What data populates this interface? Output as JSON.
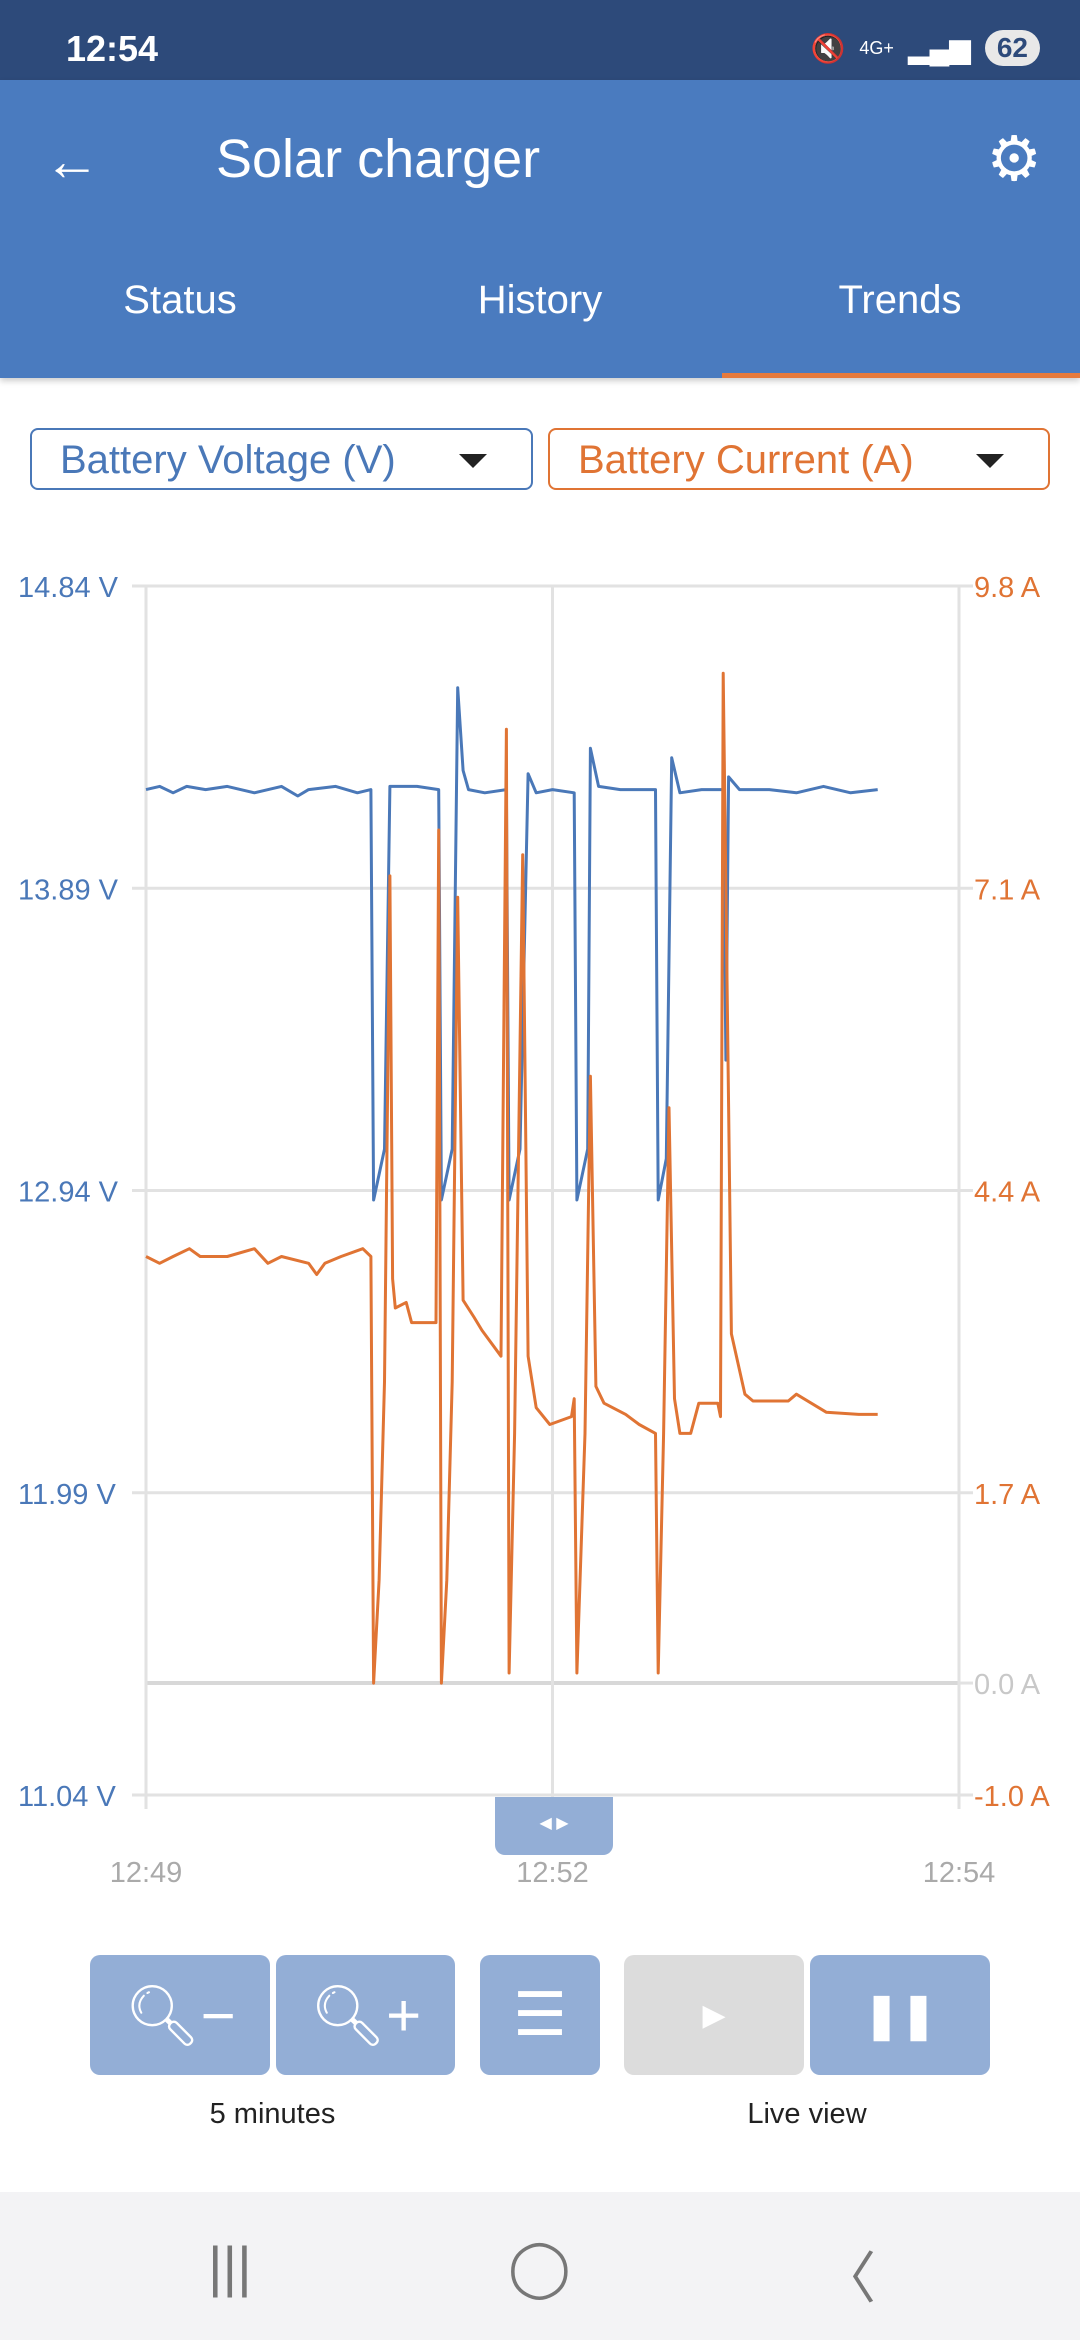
{
  "status_bar": {
    "time": "12:54",
    "battery": "62",
    "network": "4G+"
  },
  "header": {
    "title": "Solar charger"
  },
  "tabs": [
    {
      "label": "Status"
    },
    {
      "label": "History"
    },
    {
      "label": "Trends",
      "active": true
    }
  ],
  "selectors": {
    "left": "Battery Voltage (V)",
    "right": "Battery Current (A)"
  },
  "colors": {
    "voltage": "#4a78b8",
    "current": "#e07434",
    "header": "#4a7bbf",
    "accent": "#e67a3c"
  },
  "controls": {
    "zoom_label": "5 minutes",
    "live_label": "Live view"
  },
  "chart_data": {
    "type": "line",
    "x_ticks": [
      "12:49",
      "12:52",
      "12:54"
    ],
    "xlim": [
      "12:49:00",
      "12:54:00"
    ],
    "y_left": {
      "ticks": [
        "14.84 V",
        "13.89 V",
        "12.94 V",
        "11.99 V",
        "11.04 V"
      ],
      "range": [
        11.04,
        14.84
      ]
    },
    "y_right": {
      "ticks": [
        "9.8 A",
        "7.1 A",
        "4.4 A",
        "1.7 A",
        "0.0 A",
        "-1.0 A"
      ],
      "range": [
        -1.0,
        9.8
      ]
    },
    "grid": true,
    "series": [
      {
        "name": "Battery Voltage (V)",
        "axis": "left",
        "color": "#4a78b8",
        "points": [
          [
            "12:49:00",
            14.2
          ],
          [
            "12:49:05",
            14.21
          ],
          [
            "12:49:10",
            14.19
          ],
          [
            "12:49:15",
            14.21
          ],
          [
            "12:49:22",
            14.2
          ],
          [
            "12:49:30",
            14.21
          ],
          [
            "12:49:40",
            14.19
          ],
          [
            "12:49:50",
            14.21
          ],
          [
            "12:49:56",
            14.18
          ],
          [
            "12:50:00",
            14.2
          ],
          [
            "12:50:10",
            14.21
          ],
          [
            "12:50:18",
            14.19
          ],
          [
            "12:50:23",
            14.2
          ],
          [
            "12:50:24",
            12.91
          ],
          [
            "12:50:28",
            13.07
          ],
          [
            "12:50:30",
            14.21
          ],
          [
            "12:50:40",
            14.21
          ],
          [
            "12:50:48",
            14.2
          ],
          [
            "12:50:49",
            12.91
          ],
          [
            "12:50:53",
            13.07
          ],
          [
            "12:50:55",
            14.52
          ],
          [
            "12:50:57",
            14.26
          ],
          [
            "12:50:59",
            14.2
          ],
          [
            "12:51:05",
            14.19
          ],
          [
            "12:51:13",
            14.2
          ],
          [
            "12:51:14",
            12.91
          ],
          [
            "12:51:18",
            13.07
          ],
          [
            "12:51:21",
            14.25
          ],
          [
            "12:51:24",
            14.19
          ],
          [
            "12:51:30",
            14.2
          ],
          [
            "12:51:38",
            14.19
          ],
          [
            "12:51:39",
            12.91
          ],
          [
            "12:51:43",
            13.07
          ],
          [
            "12:51:44",
            14.33
          ],
          [
            "12:51:47",
            14.21
          ],
          [
            "12:51:55",
            14.2
          ],
          [
            "12:52:08",
            14.2
          ],
          [
            "12:52:09",
            12.91
          ],
          [
            "12:52:12",
            13.04
          ],
          [
            "12:52:14",
            14.3
          ],
          [
            "12:52:17",
            14.19
          ],
          [
            "12:52:25",
            14.2
          ],
          [
            "12:52:33",
            14.2
          ],
          [
            "12:52:34",
            13.35
          ],
          [
            "12:52:35",
            14.24
          ],
          [
            "12:52:39",
            14.2
          ],
          [
            "12:52:50",
            14.2
          ],
          [
            "12:53:00",
            14.19
          ],
          [
            "12:53:10",
            14.21
          ],
          [
            "12:53:20",
            14.19
          ],
          [
            "12:53:30",
            14.2
          ]
        ]
      },
      {
        "name": "Battery Current (A)",
        "axis": "right",
        "color": "#e07434",
        "points": [
          [
            "12:49:00",
            3.81
          ],
          [
            "12:49:05",
            3.75
          ],
          [
            "12:49:10",
            3.81
          ],
          [
            "12:49:16",
            3.88
          ],
          [
            "12:49:20",
            3.81
          ],
          [
            "12:49:30",
            3.81
          ],
          [
            "12:49:40",
            3.88
          ],
          [
            "12:49:45",
            3.75
          ],
          [
            "12:49:50",
            3.81
          ],
          [
            "12:50:00",
            3.75
          ],
          [
            "12:50:03",
            3.65
          ],
          [
            "12:50:06",
            3.75
          ],
          [
            "12:50:12",
            3.81
          ],
          [
            "12:50:20",
            3.88
          ],
          [
            "12:50:23",
            3.81
          ],
          [
            "12:50:24",
            0.0
          ],
          [
            "12:50:26",
            0.92
          ],
          [
            "12:50:28",
            2.69
          ],
          [
            "12:50:30",
            7.21
          ],
          [
            "12:50:31",
            3.61
          ],
          [
            "12:50:32",
            3.35
          ],
          [
            "12:50:36",
            3.4
          ],
          [
            "12:50:38",
            3.22
          ],
          [
            "12:50:47",
            3.22
          ],
          [
            "12:50:48",
            7.62
          ],
          [
            "12:50:49",
            0.0
          ],
          [
            "12:50:51",
            0.92
          ],
          [
            "12:50:53",
            2.69
          ],
          [
            "12:50:55",
            7.02
          ],
          [
            "12:50:57",
            3.42
          ],
          [
            "12:51:01",
            3.27
          ],
          [
            "12:51:04",
            3.15
          ],
          [
            "12:51:11",
            2.92
          ],
          [
            "12:51:13",
            8.52
          ],
          [
            "12:51:14",
            0.09
          ],
          [
            "12:51:16",
            2.23
          ],
          [
            "12:51:19",
            7.4
          ],
          [
            "12:51:21",
            2.92
          ],
          [
            "12:51:24",
            2.46
          ],
          [
            "12:51:29",
            2.31
          ],
          [
            "12:51:37",
            2.38
          ],
          [
            "12:51:38",
            2.54
          ],
          [
            "12:51:39",
            0.09
          ],
          [
            "12:51:42",
            2.23
          ],
          [
            "12:51:44",
            5.42
          ],
          [
            "12:51:46",
            2.65
          ],
          [
            "12:51:49",
            2.5
          ],
          [
            "12:51:57",
            2.4
          ],
          [
            "12:52:02",
            2.31
          ],
          [
            "12:52:08",
            2.23
          ],
          [
            "12:52:09",
            0.09
          ],
          [
            "12:52:11",
            2.23
          ],
          [
            "12:52:13",
            5.14
          ],
          [
            "12:52:15",
            2.54
          ],
          [
            "12:52:17",
            2.23
          ],
          [
            "12:52:21",
            2.23
          ],
          [
            "12:52:24",
            2.5
          ],
          [
            "12:52:31",
            2.5
          ],
          [
            "12:52:32",
            2.38
          ],
          [
            "12:52:33",
            9.02
          ],
          [
            "12:52:35",
            5.15
          ],
          [
            "12:52:36",
            3.12
          ],
          [
            "12:52:41",
            2.58
          ],
          [
            "12:52:44",
            2.52
          ],
          [
            "12:52:57",
            2.52
          ],
          [
            "12:53:00",
            2.58
          ],
          [
            "12:53:11",
            2.42
          ],
          [
            "12:53:23",
            2.4
          ],
          [
            "12:53:30",
            2.4
          ]
        ]
      }
    ]
  }
}
